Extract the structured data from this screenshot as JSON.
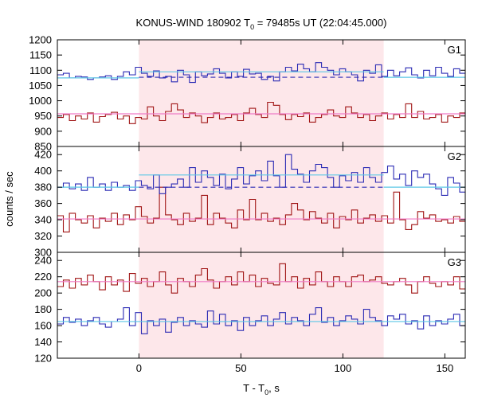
{
  "chart_data": {
    "type": "line",
    "title_main": "KONUS-WIND 180902 T",
    "title_sub": "0",
    "title_rest": " = 79485s UT (22:04:45.000)",
    "xlabel_main": "T - T",
    "xlabel_sub": "0",
    "xlabel_rest": ", s",
    "ylabel": "counts / sec",
    "xlim": [
      -40,
      160
    ],
    "x_ticks": [
      0,
      50,
      100,
      150
    ],
    "bin_width": 2.944,
    "x_start": -40,
    "shaded_interval": [
      0,
      120
    ],
    "colors": {
      "blue": "#2a2ab4",
      "red": "#a01414",
      "cyan": "#5cc7e6",
      "pink": "#f07bc6",
      "shade": "#fde7ea"
    },
    "panels": [
      {
        "label": "G1",
        "ylim": [
          850,
          1200
        ],
        "y_ticks": [
          850,
          900,
          950,
          1000,
          1050,
          1100,
          1150,
          1200
        ],
        "blue": {
          "values": [
            1085,
            1090,
            1075,
            1080,
            1078,
            1070,
            1075,
            1078,
            1082,
            1070,
            1080,
            1095,
            1085,
            1110,
            1090,
            1080,
            1098,
            1075,
            1080,
            1062,
            1100,
            1085,
            1060,
            1095,
            1082,
            1088,
            1105,
            1090,
            1075,
            1095,
            1080,
            1103,
            1088,
            1090,
            1070,
            1080,
            1065,
            1095,
            1110,
            1098,
            1120,
            1105,
            1095,
            1125,
            1110,
            1100,
            1085,
            1105,
            1095,
            1085,
            1065,
            1100,
            1090,
            1118,
            1080,
            1100,
            1082,
            1095,
            1108,
            1085,
            1075,
            1100,
            1082,
            1110,
            1090,
            1080,
            1105,
            1090,
            1060,
            1095,
            1085,
            1080
          ],
          "fit_segments": [
            [
              -40,
              0,
              1075
            ],
            [
              0,
              120,
              1095
            ],
            [
              120,
              160,
              1077
            ]
          ],
          "dashed_level": 1077
        },
        "red": {
          "values": [
            945,
            955,
            935,
            950,
            940,
            960,
            930,
            948,
            955,
            962,
            940,
            950,
            925,
            945,
            940,
            980,
            950,
            935,
            965,
            990,
            970,
            945,
            960,
            950,
            928,
            945,
            960,
            940,
            945,
            955,
            935,
            960,
            975,
            955,
            945,
            995,
            985,
            955,
            938,
            955,
            948,
            960,
            930,
            945,
            955,
            970,
            950,
            945,
            980,
            960,
            945,
            955,
            935,
            950,
            960,
            940,
            955,
            945,
            990,
            945,
            965,
            940,
            945,
            955,
            930,
            950,
            945,
            960,
            940,
            955,
            945,
            950
          ],
          "fit_segments": [
            [
              -40,
              160,
              957
            ]
          ]
        }
      },
      {
        "label": "G2",
        "ylim": [
          300,
          430
        ],
        "y_ticks": [
          300,
          320,
          340,
          360,
          380,
          400,
          420
        ],
        "blue": {
          "values": [
            380,
            385,
            378,
            384,
            376,
            392,
            380,
            384,
            376,
            386,
            380,
            382,
            376,
            388,
            382,
            378,
            395,
            372,
            380,
            384,
            390,
            380,
            404,
            386,
            400,
            392,
            382,
            396,
            378,
            390,
            404,
            384,
            394,
            400,
            388,
            412,
            394,
            380,
            420,
            402,
            396,
            386,
            400,
            408,
            404,
            392,
            380,
            394,
            388,
            398,
            386,
            404,
            392,
            386,
            398,
            406,
            390,
            396,
            382,
            400,
            392,
            396,
            384,
            378,
            370,
            392,
            385,
            374,
            360,
            378,
            402,
            385,
            394,
            372,
            380,
            388,
            376,
            382,
            384,
            378
          ],
          "fit_segments": [
            [
              -40,
              0,
              380
            ],
            [
              0,
              120,
              395
            ],
            [
              120,
              160,
              380
            ]
          ],
          "dashed_level": 380
        },
        "red": {
          "values": [
            345,
            325,
            348,
            340,
            336,
            345,
            330,
            342,
            338,
            348,
            334,
            346,
            340,
            356,
            344,
            336,
            342,
            380,
            346,
            340,
            334,
            348,
            338,
            342,
            370,
            334,
            348,
            342,
            336,
            330,
            352,
            340,
            365,
            340,
            348,
            338,
            342,
            334,
            346,
            360,
            352,
            340,
            350,
            342,
            336,
            348,
            330,
            344,
            340,
            352,
            336,
            342,
            346,
            338,
            345,
            336,
            374,
            340,
            328,
            334,
            350,
            342,
            346,
            338,
            340,
            336,
            344,
            338,
            330,
            322,
            344,
            338,
            328,
            350,
            340,
            336
          ],
          "fit_segments": [
            [
              -40,
              160,
              341
            ]
          ]
        }
      },
      {
        "label": "G3",
        "ylim": [
          120,
          250
        ],
        "y_ticks": [
          120,
          140,
          160,
          180,
          200,
          220,
          240
        ],
        "blue": {
          "values": [
            162,
            170,
            164,
            168,
            160,
            166,
            170,
            162,
            158,
            165,
            168,
            182,
            160,
            176,
            150,
            166,
            160,
            168,
            152,
            164,
            170,
            160,
            166,
            162,
            158,
            178,
            162,
            174,
            160,
            166,
            154,
            170,
            160,
            166,
            172,
            160,
            168,
            176,
            162,
            170,
            166,
            160,
            174,
            182,
            164,
            170,
            160,
            166,
            172,
            168,
            162,
            180,
            170,
            166,
            160,
            172,
            168,
            174,
            162,
            166,
            156,
            172,
            160,
            166,
            162,
            168,
            174,
            160,
            166,
            170
          ],
          "fit_segments": [
            [
              -40,
              160,
              165
            ]
          ]
        },
        "red": {
          "values": [
            208,
            216,
            206,
            218,
            210,
            222,
            214,
            204,
            220,
            210,
            216,
            202,
            224,
            212,
            218,
            208,
            214,
            226,
            210,
            200,
            218,
            214,
            208,
            222,
            230,
            216,
            206,
            214,
            220,
            210,
            226,
            214,
            222,
            208,
            218,
            212,
            210,
            236,
            214,
            220,
            206,
            218,
            210,
            226,
            214,
            208,
            220,
            214,
            208,
            220,
            222,
            214,
            216,
            220,
            212,
            210,
            214,
            218,
            210,
            200,
            214,
            220,
            212,
            208,
            214,
            210,
            220,
            205,
            212,
            208,
            214,
            206
          ],
          "fit_segments": [
            [
              -40,
              160,
              214
            ]
          ]
        }
      }
    ]
  }
}
